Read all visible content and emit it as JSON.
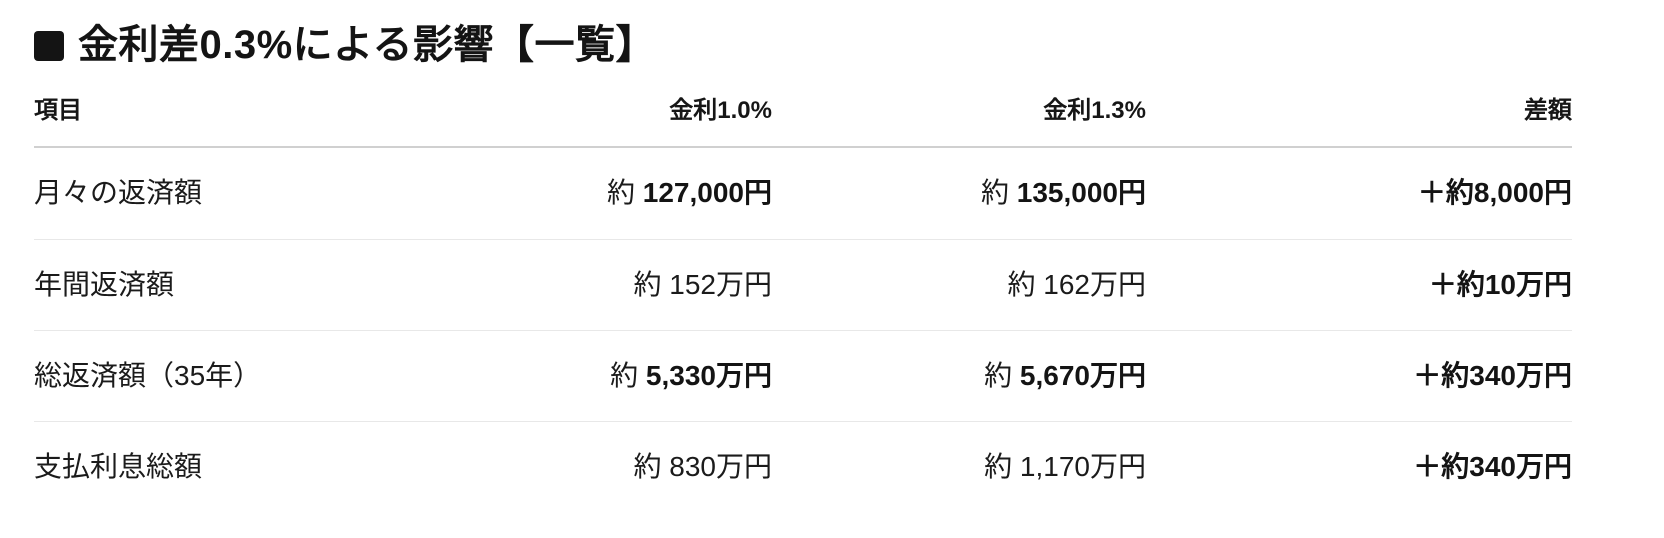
{
  "title": {
    "text": "金利差0.3%による影響【一覧】"
  },
  "icons": {
    "square_bullet": "black-rounded-square"
  },
  "colors": {
    "background": "#ffffff",
    "text": "#1b1b1b",
    "header_border": "#d0d0d0",
    "row_border": "#e8e8e8",
    "bullet": "#141414"
  },
  "table": {
    "columns": [
      {
        "label": "項目",
        "align": "left"
      },
      {
        "label": "金利1.0%",
        "align": "right"
      },
      {
        "label": "金利1.3%",
        "align": "right"
      },
      {
        "label": "差額",
        "align": "right"
      }
    ],
    "rows": [
      {
        "item": "月々の返済額",
        "rate_low": {
          "pre": "約 ",
          "val": "127,000円"
        },
        "rate_high": {
          "pre": "約 ",
          "val": "135,000円"
        },
        "diff": {
          "pre": "",
          "val": "＋約8,000円"
        }
      },
      {
        "item": "年間返済額",
        "rate_low": {
          "pre": "約 ",
          "val": "152万円"
        },
        "rate_high": {
          "pre": "約 ",
          "val": "162万円"
        },
        "diff": {
          "pre": "",
          "val": "＋約10万円"
        }
      },
      {
        "item": "総返済額（35年）",
        "rate_low": {
          "pre": "約 ",
          "val": "5,330万円"
        },
        "rate_high": {
          "pre": "約 ",
          "val": "5,670万円"
        },
        "diff": {
          "pre": "",
          "val": "＋約340万円"
        }
      },
      {
        "item": "支払利息総額",
        "rate_low": {
          "pre": "約 ",
          "val": "830万円"
        },
        "rate_high": {
          "pre": "約 ",
          "val": "1,170万円"
        },
        "diff": {
          "pre": "",
          "val": "＋約340万円"
        }
      }
    ]
  }
}
